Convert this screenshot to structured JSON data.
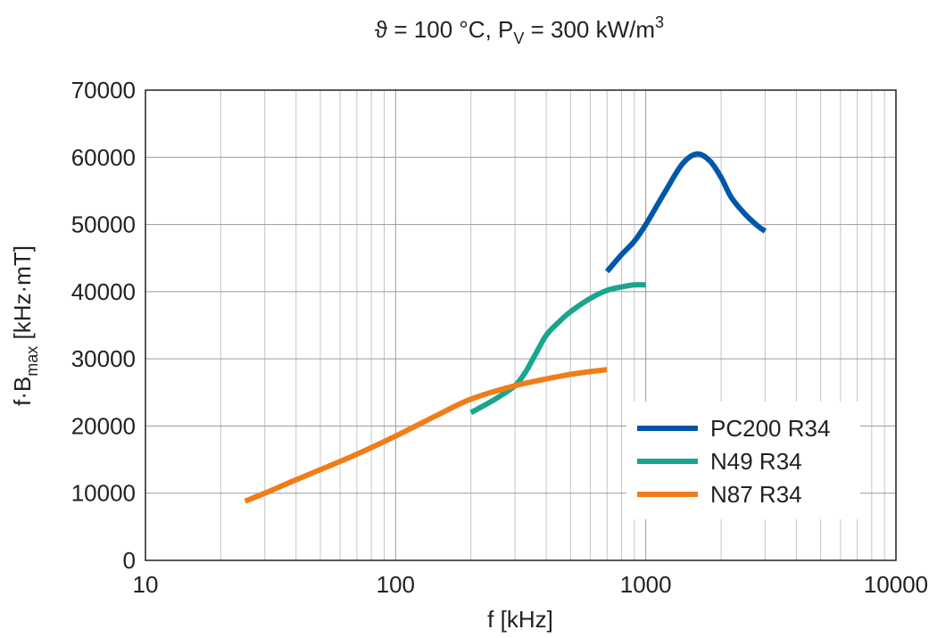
{
  "chart_data": {
    "type": "line",
    "title": {
      "symbol": "ϑ",
      "text1": " = 100 °C, P",
      "sub": "V",
      "text2": " = 300 kW/m",
      "sup": "3"
    },
    "xlabel": "f [kHz]",
    "ylabel": {
      "main": "f·B",
      "sub": "max",
      "unit": " [kHz·mT]"
    },
    "xscale": "log",
    "xlim": [
      10,
      10000
    ],
    "ylim": [
      0,
      70000
    ],
    "xticks": [
      10,
      100,
      1000,
      10000
    ],
    "xtick_labels": [
      "10",
      "100",
      "1000",
      "10000"
    ],
    "yticks": [
      0,
      10000,
      20000,
      30000,
      40000,
      50000,
      60000,
      70000
    ],
    "ytick_labels": [
      "0",
      "10000",
      "20000",
      "30000",
      "40000",
      "50000",
      "60000",
      "70000"
    ],
    "grid": true,
    "legend_position": "lower-right",
    "series": [
      {
        "name": "PC200 R34",
        "color": "#0057a8",
        "x": [
          700,
          800,
          900,
          1000,
          1200,
          1400,
          1600,
          1800,
          2000,
          2200,
          2500,
          2800,
          3000
        ],
        "y": [
          43000,
          45500,
          47500,
          50000,
          55000,
          59000,
          60500,
          59500,
          57000,
          54000,
          51500,
          49800,
          49000
        ]
      },
      {
        "name": "N49 R34",
        "color": "#1aa58e",
        "x": [
          200,
          250,
          300,
          330,
          360,
          400,
          450,
          500,
          600,
          700,
          800,
          900,
          1000
        ],
        "y": [
          22000,
          24000,
          26000,
          28000,
          30500,
          33500,
          35500,
          37000,
          39000,
          40200,
          40700,
          41000,
          41000
        ]
      },
      {
        "name": "N87 R34",
        "color": "#ef7d18",
        "x": [
          25,
          30,
          40,
          50,
          70,
          100,
          150,
          200,
          300,
          400,
          500,
          600,
          700
        ],
        "y": [
          8800,
          10000,
          12000,
          13500,
          15800,
          18500,
          21800,
          24000,
          26000,
          27000,
          27700,
          28100,
          28400
        ]
      }
    ]
  }
}
